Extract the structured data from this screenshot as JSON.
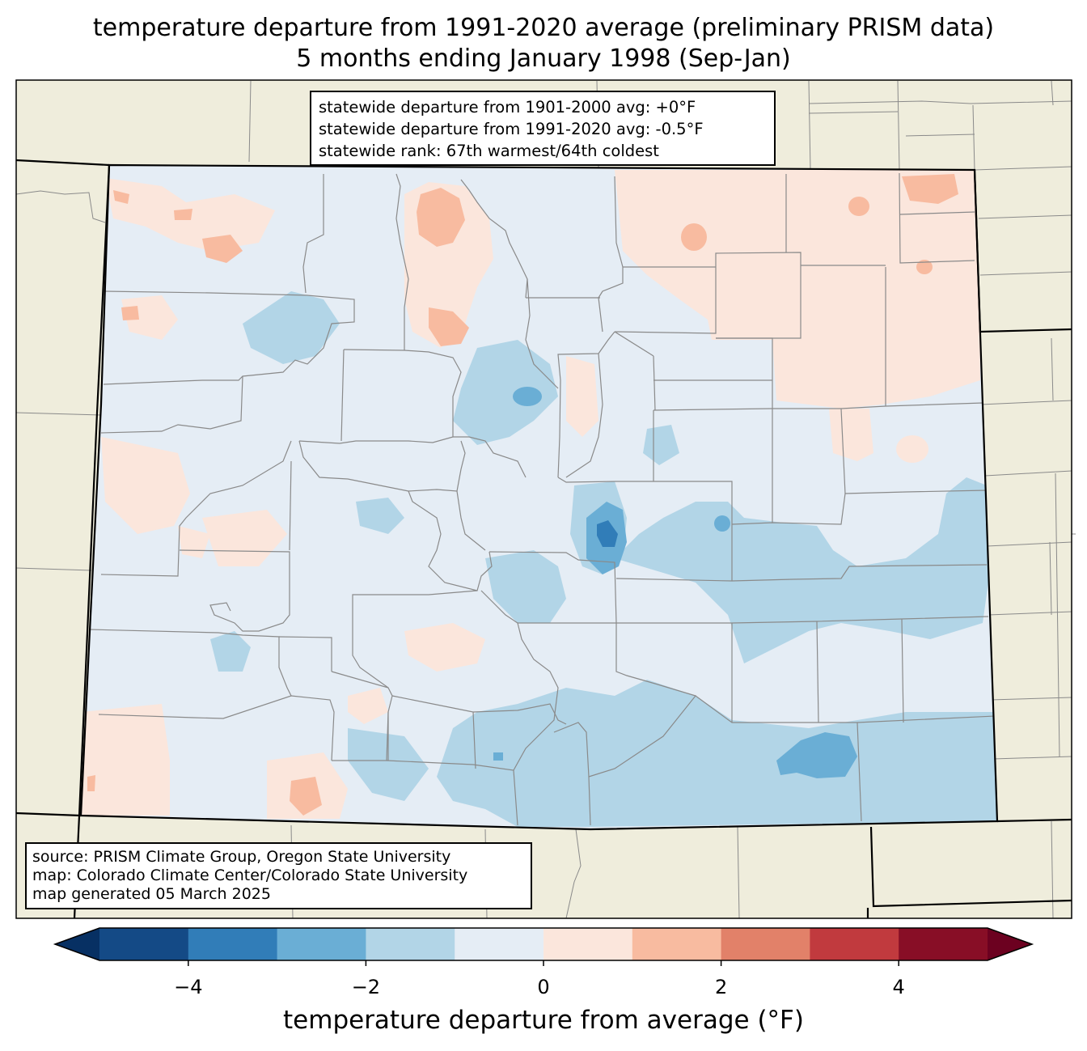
{
  "title": {
    "line1": "temperature departure from 1991-2020 average (preliminary PRISM data)",
    "line2": "5 months ending January 1998 (Sep-Jan)"
  },
  "stats_box": {
    "line1": "statewide departure from 1901-2000 avg: +0°F",
    "line2": "statewide departure from 1991-2020 avg: -0.5°F",
    "line3": "statewide rank: 67th warmest/64th coldest"
  },
  "source_box": {
    "line1": "source: PRISM Climate Group, Oregon State University",
    "line2": "map: Colorado Climate Center/Colorado State University",
    "line3": "map generated 05 March 2025"
  },
  "colorbar": {
    "label": "temperature departure from average (°F)",
    "ticks": [
      "−4",
      "−2",
      "0",
      "2",
      "4"
    ],
    "tick_values": [
      -4,
      -2,
      0,
      2,
      4
    ],
    "min": -5,
    "max": 5,
    "bins": [
      {
        "from": -5,
        "to": -4,
        "color": "#144a86"
      },
      {
        "from": -4,
        "to": -3,
        "color": "#317db8"
      },
      {
        "from": -3,
        "to": -2,
        "color": "#6aaed5"
      },
      {
        "from": -2,
        "to": -1,
        "color": "#b2d5e7"
      },
      {
        "from": -1,
        "to": 0,
        "color": "#e5edf5"
      },
      {
        "from": 0,
        "to": 1,
        "color": "#fbe6dc"
      },
      {
        "from": 1,
        "to": 2,
        "color": "#f8bba0"
      },
      {
        "from": 2,
        "to": 3,
        "color": "#e28169"
      },
      {
        "from": 3,
        "to": 4,
        "color": "#c13a3e"
      },
      {
        "from": 4,
        "to": 5,
        "color": "#880e26"
      }
    ],
    "under_color": "#073063",
    "over_color": "#6c0120"
  },
  "map_colors": {
    "background": "#efeddc",
    "state_fill": "#e5edf5"
  }
}
